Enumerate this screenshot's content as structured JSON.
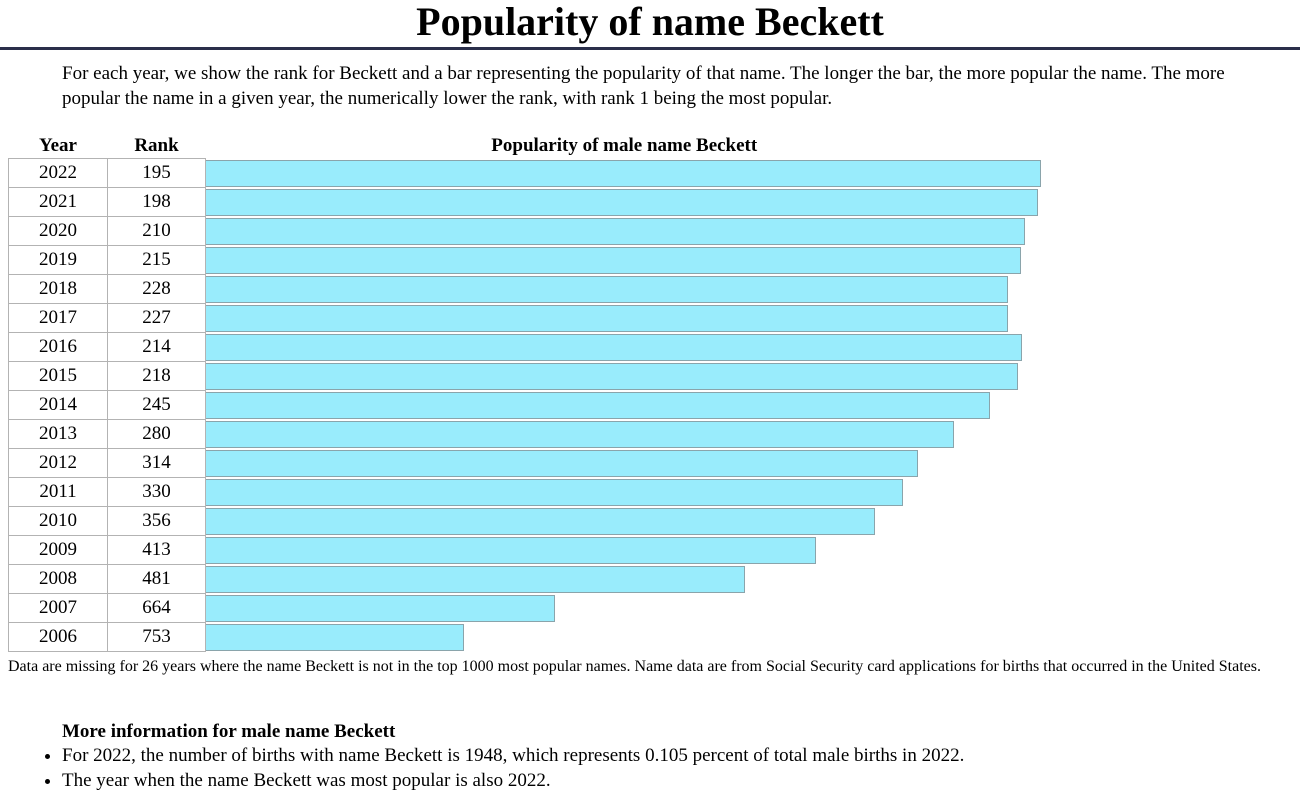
{
  "page": {
    "title": "Popularity of name Beckett",
    "intro": "For each year, we show the rank for Beckett and a bar representing the popularity of that name. The longer the bar, the more popular the name. The more popular the name in a given year, the numerically lower the rank, with rank 1 being the most popular."
  },
  "table": {
    "headers": {
      "year": "Year",
      "rank": "Rank",
      "bar": "Popularity of male name Beckett"
    },
    "bar_color": "#99ecfc"
  },
  "chart_data": {
    "type": "bar",
    "orientation": "horizontal",
    "title": "Popularity of male name Beckett",
    "categories": [
      "2022",
      "2021",
      "2020",
      "2019",
      "2018",
      "2017",
      "2016",
      "2015",
      "2014",
      "2013",
      "2012",
      "2011",
      "2010",
      "2009",
      "2008",
      "2007",
      "2006"
    ],
    "ranks": [
      195,
      198,
      210,
      215,
      228,
      227,
      214,
      218,
      245,
      280,
      314,
      330,
      356,
      413,
      481,
      664,
      753
    ],
    "popularity_fraction": [
      1.0,
      0.997,
      0.981,
      0.976,
      0.96,
      0.961,
      0.977,
      0.972,
      0.939,
      0.896,
      0.853,
      0.835,
      0.801,
      0.731,
      0.646,
      0.419,
      0.31
    ]
  },
  "footnote": "Data are missing for 26 years where the name Beckett is not in the top 1000 most popular names. Name data are from Social Security card applications for births that occurred in the United States.",
  "more_info": {
    "heading": "More information for male name Beckett",
    "items": [
      "For 2022, the number of births with name Beckett is 1948, which represents 0.105 percent of total male births in 2022.",
      "The year when the name Beckett was most popular is also 2022."
    ]
  }
}
